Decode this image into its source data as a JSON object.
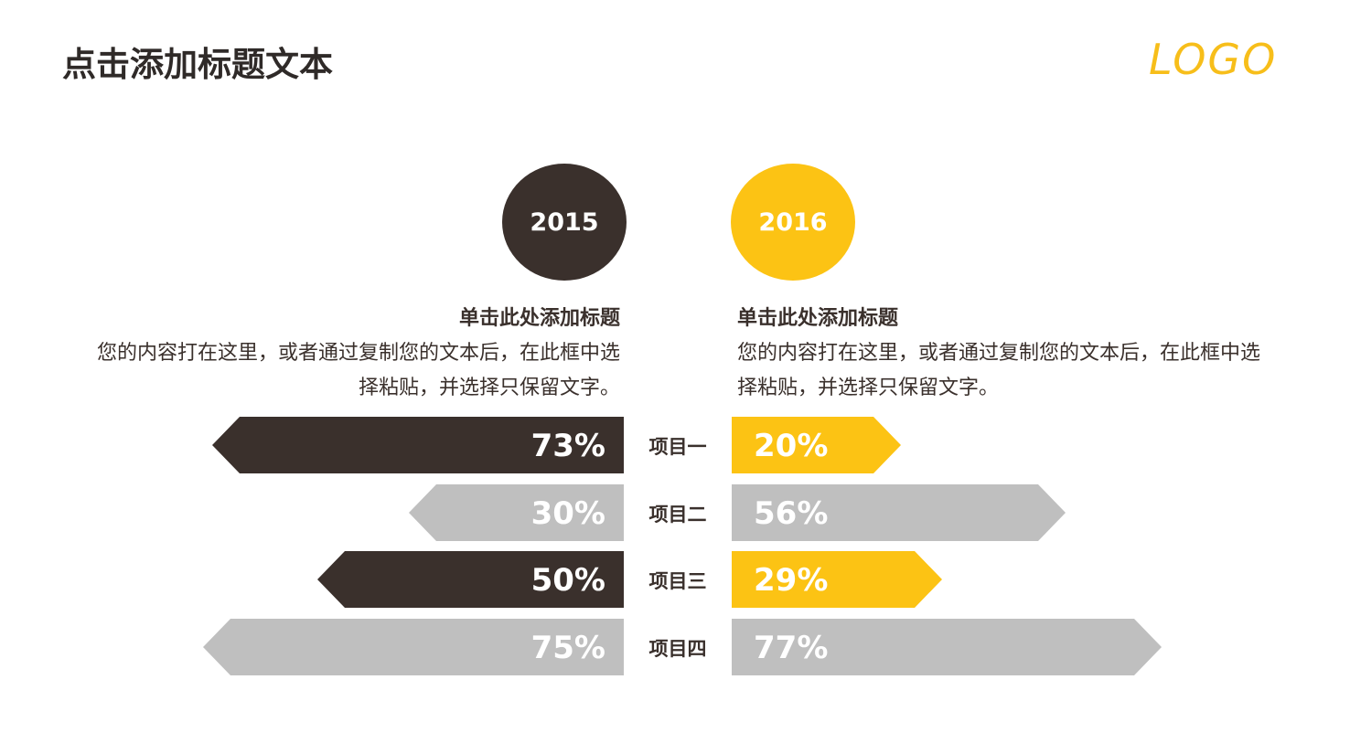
{
  "header": {
    "title": "点击添加标题文本",
    "logo": "LOGO"
  },
  "columns": [
    {
      "year": "2015",
      "heading": "单击此处添加标题",
      "body": "您的内容打在这里，或者通过复制您的文本后，在此框中选择粘贴，并选择只保留文字。"
    },
    {
      "year": "2016",
      "heading": "单击此处添加标题",
      "body": "您的内容打在这里，或者通过复制您的文本后，在此框中选择粘贴，并选择只保留文字。"
    }
  ],
  "colors": {
    "dark": "#3a302c",
    "yellow": "#fcc314",
    "gray": "#bfbfbf",
    "text": "#3a302c"
  },
  "chart_data": {
    "type": "bar",
    "orientation": "horizontal-butterfly",
    "categories": [
      "项目一",
      "项目二",
      "项目三",
      "项目四"
    ],
    "series": [
      {
        "name": "2015",
        "side": "left",
        "values": [
          73,
          30,
          50,
          75
        ],
        "labels": [
          "73%",
          "30%",
          "50%",
          "75%"
        ],
        "colors": [
          "#3a302c",
          "#bfbfbf",
          "#3a302c",
          "#bfbfbf"
        ]
      },
      {
        "name": "2016",
        "side": "right",
        "values": [
          20,
          56,
          29,
          77
        ],
        "labels": [
          "20%",
          "56%",
          "29%",
          "77%"
        ],
        "colors": [
          "#fcc314",
          "#bfbfbf",
          "#fcc314",
          "#bfbfbf"
        ]
      }
    ]
  }
}
